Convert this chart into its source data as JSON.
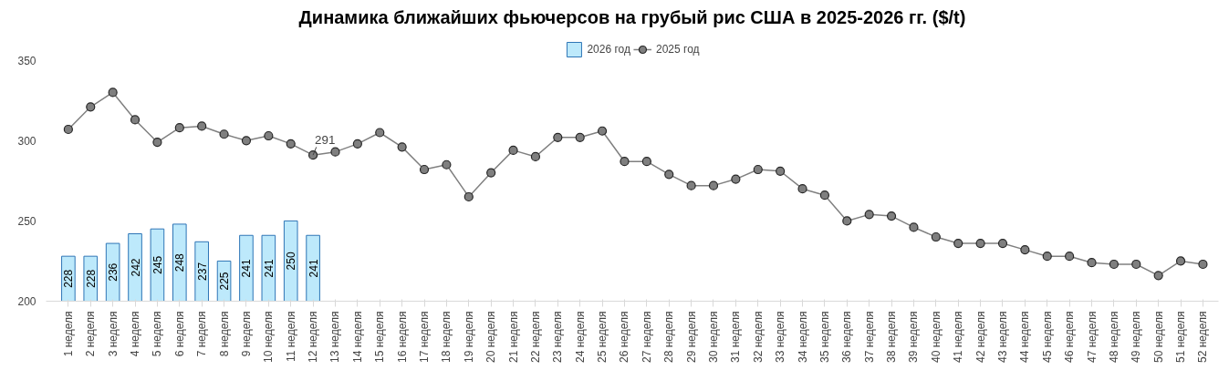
{
  "chart_data": {
    "type": "line",
    "title": "Динамика ближайших фьючерсов на грубый рис США в 2025-2026 гг. ($/t)",
    "categories": [
      "1 неделя",
      "2 неделя",
      "3 неделя",
      "4 неделя",
      "5 неделя",
      "6 неделя",
      "7 неделя",
      "8 неделя",
      "9 неделя",
      "10 неделя",
      "11 неделя",
      "12 неделя",
      "13 неделя",
      "14 неделя",
      "15 неделя",
      "16 неделя",
      "17 неделя",
      "18 неделя",
      "19 неделя",
      "20 неделя",
      "21 неделя",
      "22 неделя",
      "23 неделя",
      "24 неделя",
      "25 неделя",
      "26 неделя",
      "27 неделя",
      "28 неделя",
      "29 неделя",
      "30 неделя",
      "31 неделя",
      "32 неделя",
      "33 неделя",
      "34 неделя",
      "35 неделя",
      "36 неделя",
      "37 неделя",
      "38 неделя",
      "39 неделя",
      "40 неделя",
      "41 неделя",
      "42 неделя",
      "43 неделя",
      "44 неделя",
      "45 неделя",
      "46 неделя",
      "47 неделя",
      "48 неделя",
      "49 неделя",
      "50 неделя",
      "51 неделя",
      "52 неделя"
    ],
    "series": [
      {
        "name": "2026 год",
        "type": "bar",
        "color": "#bde9fb",
        "data_labels": true,
        "values": [
          228,
          228,
          236,
          242,
          245,
          248,
          237,
          225,
          241,
          241,
          250,
          241,
          null,
          null,
          null,
          null,
          null,
          null,
          null,
          null,
          null,
          null,
          null,
          null,
          null,
          null,
          null,
          null,
          null,
          null,
          null,
          null,
          null,
          null,
          null,
          null,
          null,
          null,
          null,
          null,
          null,
          null,
          null,
          null,
          null,
          null,
          null,
          null,
          null,
          null,
          null,
          null
        ]
      },
      {
        "name": "2025 год",
        "color": "#808080",
        "marker": "circle",
        "values": [
          307,
          321,
          330,
          313,
          299,
          308,
          309,
          304,
          300,
          303,
          298,
          291,
          293,
          298,
          305,
          296,
          282,
          285,
          265,
          280,
          294,
          290,
          302,
          302,
          306,
          287,
          287,
          279,
          272,
          272,
          276,
          282,
          281,
          270,
          266,
          250,
          254,
          253,
          246,
          240,
          236,
          236,
          236,
          232,
          228,
          228,
          224,
          223,
          223,
          216,
          225,
          223
        ]
      }
    ],
    "ylim": [
      200,
      350
    ],
    "yticks": [
      200,
      250,
      300,
      350
    ],
    "grid": false,
    "legend": "top",
    "annotations": [
      {
        "text": "291",
        "x": "12 неделя",
        "y": 291
      }
    ]
  }
}
